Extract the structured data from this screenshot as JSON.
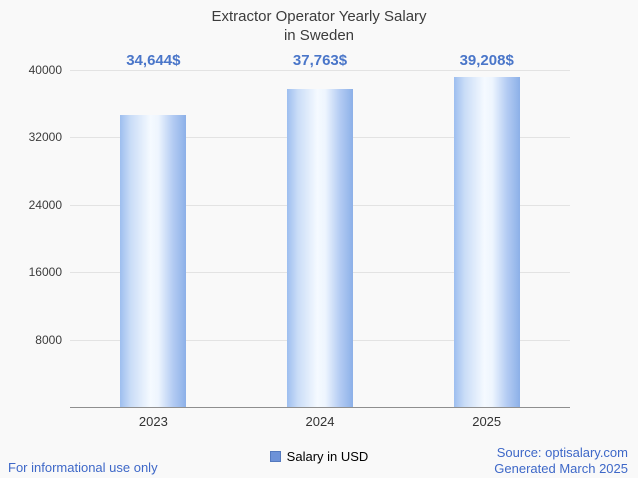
{
  "title": {
    "line1": "Extractor Operator Yearly Salary",
    "line2": "in Sweden"
  },
  "chart_data": {
    "type": "bar",
    "title": "Extractor Operator Yearly Salary in Sweden",
    "categories": [
      "2023",
      "2024",
      "2025"
    ],
    "values": [
      34644,
      37763,
      39208
    ],
    "value_labels": [
      "34,644$",
      "37,763$",
      "39,208$"
    ],
    "series_name": "Salary in USD",
    "xlabel": "",
    "ylabel": "",
    "ylim": [
      0,
      40000
    ],
    "yticks": [
      40000,
      32000,
      24000,
      16000,
      8000
    ],
    "grid": true,
    "legend_position": "bottom"
  },
  "legend": {
    "label": "Salary in USD"
  },
  "footer": {
    "left": "For informational use only",
    "source": "Source: optisalary.com",
    "generated": "Generated March 2025"
  },
  "colors": {
    "background": "#f9f9f9",
    "title_text": "#3c3c3c",
    "value_label_text": "#4a76c9",
    "footer_text": "#3e68c8",
    "gridline": "#e3e3e3",
    "axis_line": "#8f8f8f",
    "bar_edge": "#8cb0e8",
    "bar_center": "#f5faff",
    "legend_marker": "#6d92d8"
  }
}
